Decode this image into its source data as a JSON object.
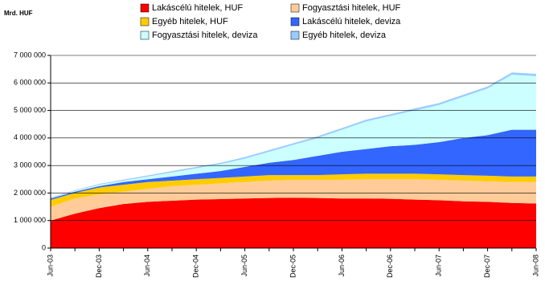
{
  "chart_data": {
    "type": "stacked-area",
    "y_label": "Mrd. HUF",
    "categories": [
      "Jun-03",
      null,
      "Dec-03",
      null,
      "Jun-04",
      null,
      "Dec-04",
      null,
      "Jun-05",
      null,
      "Dec-05",
      null,
      "Jun-06",
      null,
      "Dec-06",
      null,
      "Jun-07",
      null,
      "Dec-07",
      null,
      "Jun-08"
    ],
    "series": [
      {
        "name": "Lakáscélú hitelek, HUF",
        "color": "#ff0000",
        "values": [
          1000000,
          1250000,
          1450000,
          1600000,
          1680000,
          1720000,
          1760000,
          1780000,
          1800000,
          1820000,
          1830000,
          1820000,
          1800000,
          1800000,
          1790000,
          1760000,
          1740000,
          1700000,
          1680000,
          1640000,
          1620000
        ]
      },
      {
        "name": "Fogyasztási hitelek, HUF",
        "color": "#ffcc99",
        "values": [
          500000,
          550000,
          500000,
          450000,
          470000,
          530000,
          540000,
          570000,
          600000,
          630000,
          650000,
          660000,
          680000,
          700000,
          710000,
          740000,
          740000,
          750000,
          740000,
          760000,
          780000
        ]
      },
      {
        "name": "Egyéb hitelek, HUF",
        "color": "#ffcc00",
        "values": [
          250000,
          200000,
          250000,
          250000,
          250000,
          200000,
          200000,
          200000,
          200000,
          200000,
          170000,
          170000,
          200000,
          200000,
          200000,
          200000,
          200000,
          200000,
          210000,
          200000,
          200000
        ]
      },
      {
        "name": "Lakáscélú hitelek, deviza",
        "color": "#3366ff",
        "values": [
          50000,
          50000,
          50000,
          100000,
          100000,
          150000,
          200000,
          250000,
          350000,
          450000,
          550000,
          700000,
          820000,
          900000,
          1000000,
          1050000,
          1170000,
          1350000,
          1470000,
          1700000,
          1700000
        ]
      },
      {
        "name": "Fogyasztási hitelek, deviza",
        "color": "#ccffff",
        "values": [
          20000,
          30000,
          50000,
          50000,
          100000,
          150000,
          200000,
          250000,
          300000,
          400000,
          550000,
          650000,
          800000,
          1000000,
          1100000,
          1250000,
          1350000,
          1500000,
          1700000,
          2000000,
          1950000
        ]
      },
      {
        "name": "Egyéb hitelek, deviza",
        "color": "#99ccff",
        "values": [
          20000,
          25000,
          30000,
          35000,
          40000,
          45000,
          50000,
          50000,
          55000,
          60000,
          60000,
          60000,
          60000,
          65000,
          65000,
          70000,
          70000,
          70000,
          70000,
          80000,
          80000
        ]
      }
    ],
    "ylim": [
      0,
      7000000
    ],
    "yticks": [
      0,
      {
        "value": 1000000,
        "label": "1 000 000"
      },
      {
        "value": 2000000,
        "label": "2 000 000"
      },
      {
        "value": 3000000,
        "label": "3 000 000"
      },
      {
        "value": 4000000,
        "label": "4 000 000"
      },
      {
        "value": 5000000,
        "label": "5 000 000"
      },
      {
        "value": 6000000,
        "label": "6 000 000"
      },
      {
        "value": 7000000,
        "label": "7 000 000"
      }
    ],
    "grid": true
  }
}
